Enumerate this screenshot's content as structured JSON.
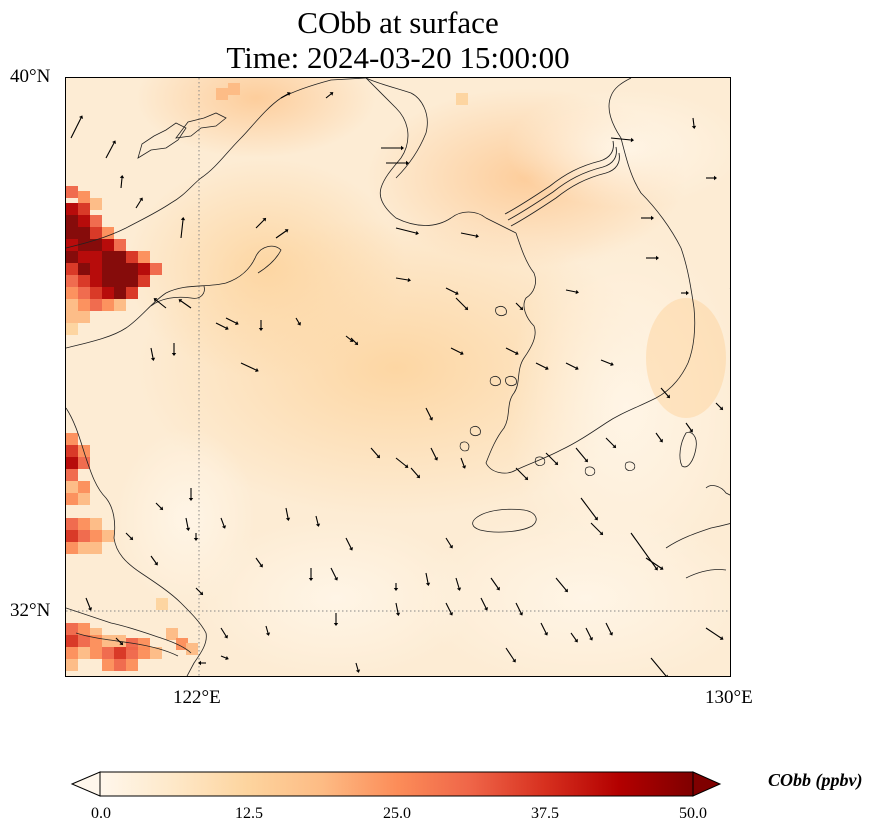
{
  "title": {
    "line1": "CObb at surface",
    "line2": "Time: 2024-03-20 15:00:00"
  },
  "axes": {
    "lat_ticks": [
      "40°N",
      "32°N"
    ],
    "lon_ticks": [
      "122°E",
      "130°E"
    ],
    "extent": {
      "lon_min": 120,
      "lon_max": 130,
      "lat_min": 31,
      "lat_max": 40
    },
    "gridlines": {
      "lon": [
        122
      ],
      "lat": [
        32
      ]
    }
  },
  "colorbar": {
    "label": "CObb (ppbv)",
    "ticks": [
      "0.0",
      "12.5",
      "25.0",
      "37.5",
      "50.0"
    ],
    "min": 0,
    "max": 50,
    "colormap": "OrRd",
    "colors": [
      "#fff7ec",
      "#fee8c8",
      "#fdd49e",
      "#fdbb84",
      "#fc8d59",
      "#ef6548",
      "#d7301f",
      "#b30000",
      "#7f0000"
    ],
    "extend": "both"
  },
  "field_background": "#fdf0dd",
  "coastline_color": "#222222"
}
